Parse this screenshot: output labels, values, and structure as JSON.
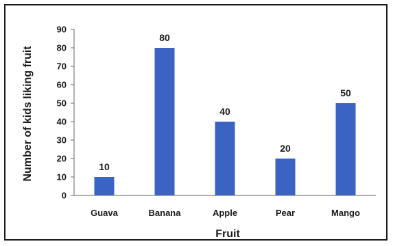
{
  "chart_data": {
    "type": "bar",
    "categories": [
      "Guava",
      "Banana",
      "Apple",
      "Pear",
      "Mango"
    ],
    "values": [
      10,
      80,
      40,
      20,
      50
    ],
    "data_labels": [
      "10",
      "80",
      "40",
      "20",
      "50"
    ],
    "title": "",
    "xlabel": "Fruit",
    "ylabel": "Number of kids liking  fruit",
    "ylim": [
      0,
      90
    ],
    "yticks": [
      "0",
      "10",
      "20",
      "30",
      "40",
      "50",
      "60",
      "70",
      "80",
      "90"
    ],
    "grid": false,
    "legend": "none",
    "bar_color": "#3b63c4",
    "axis_color": "#7f7f7f"
  }
}
